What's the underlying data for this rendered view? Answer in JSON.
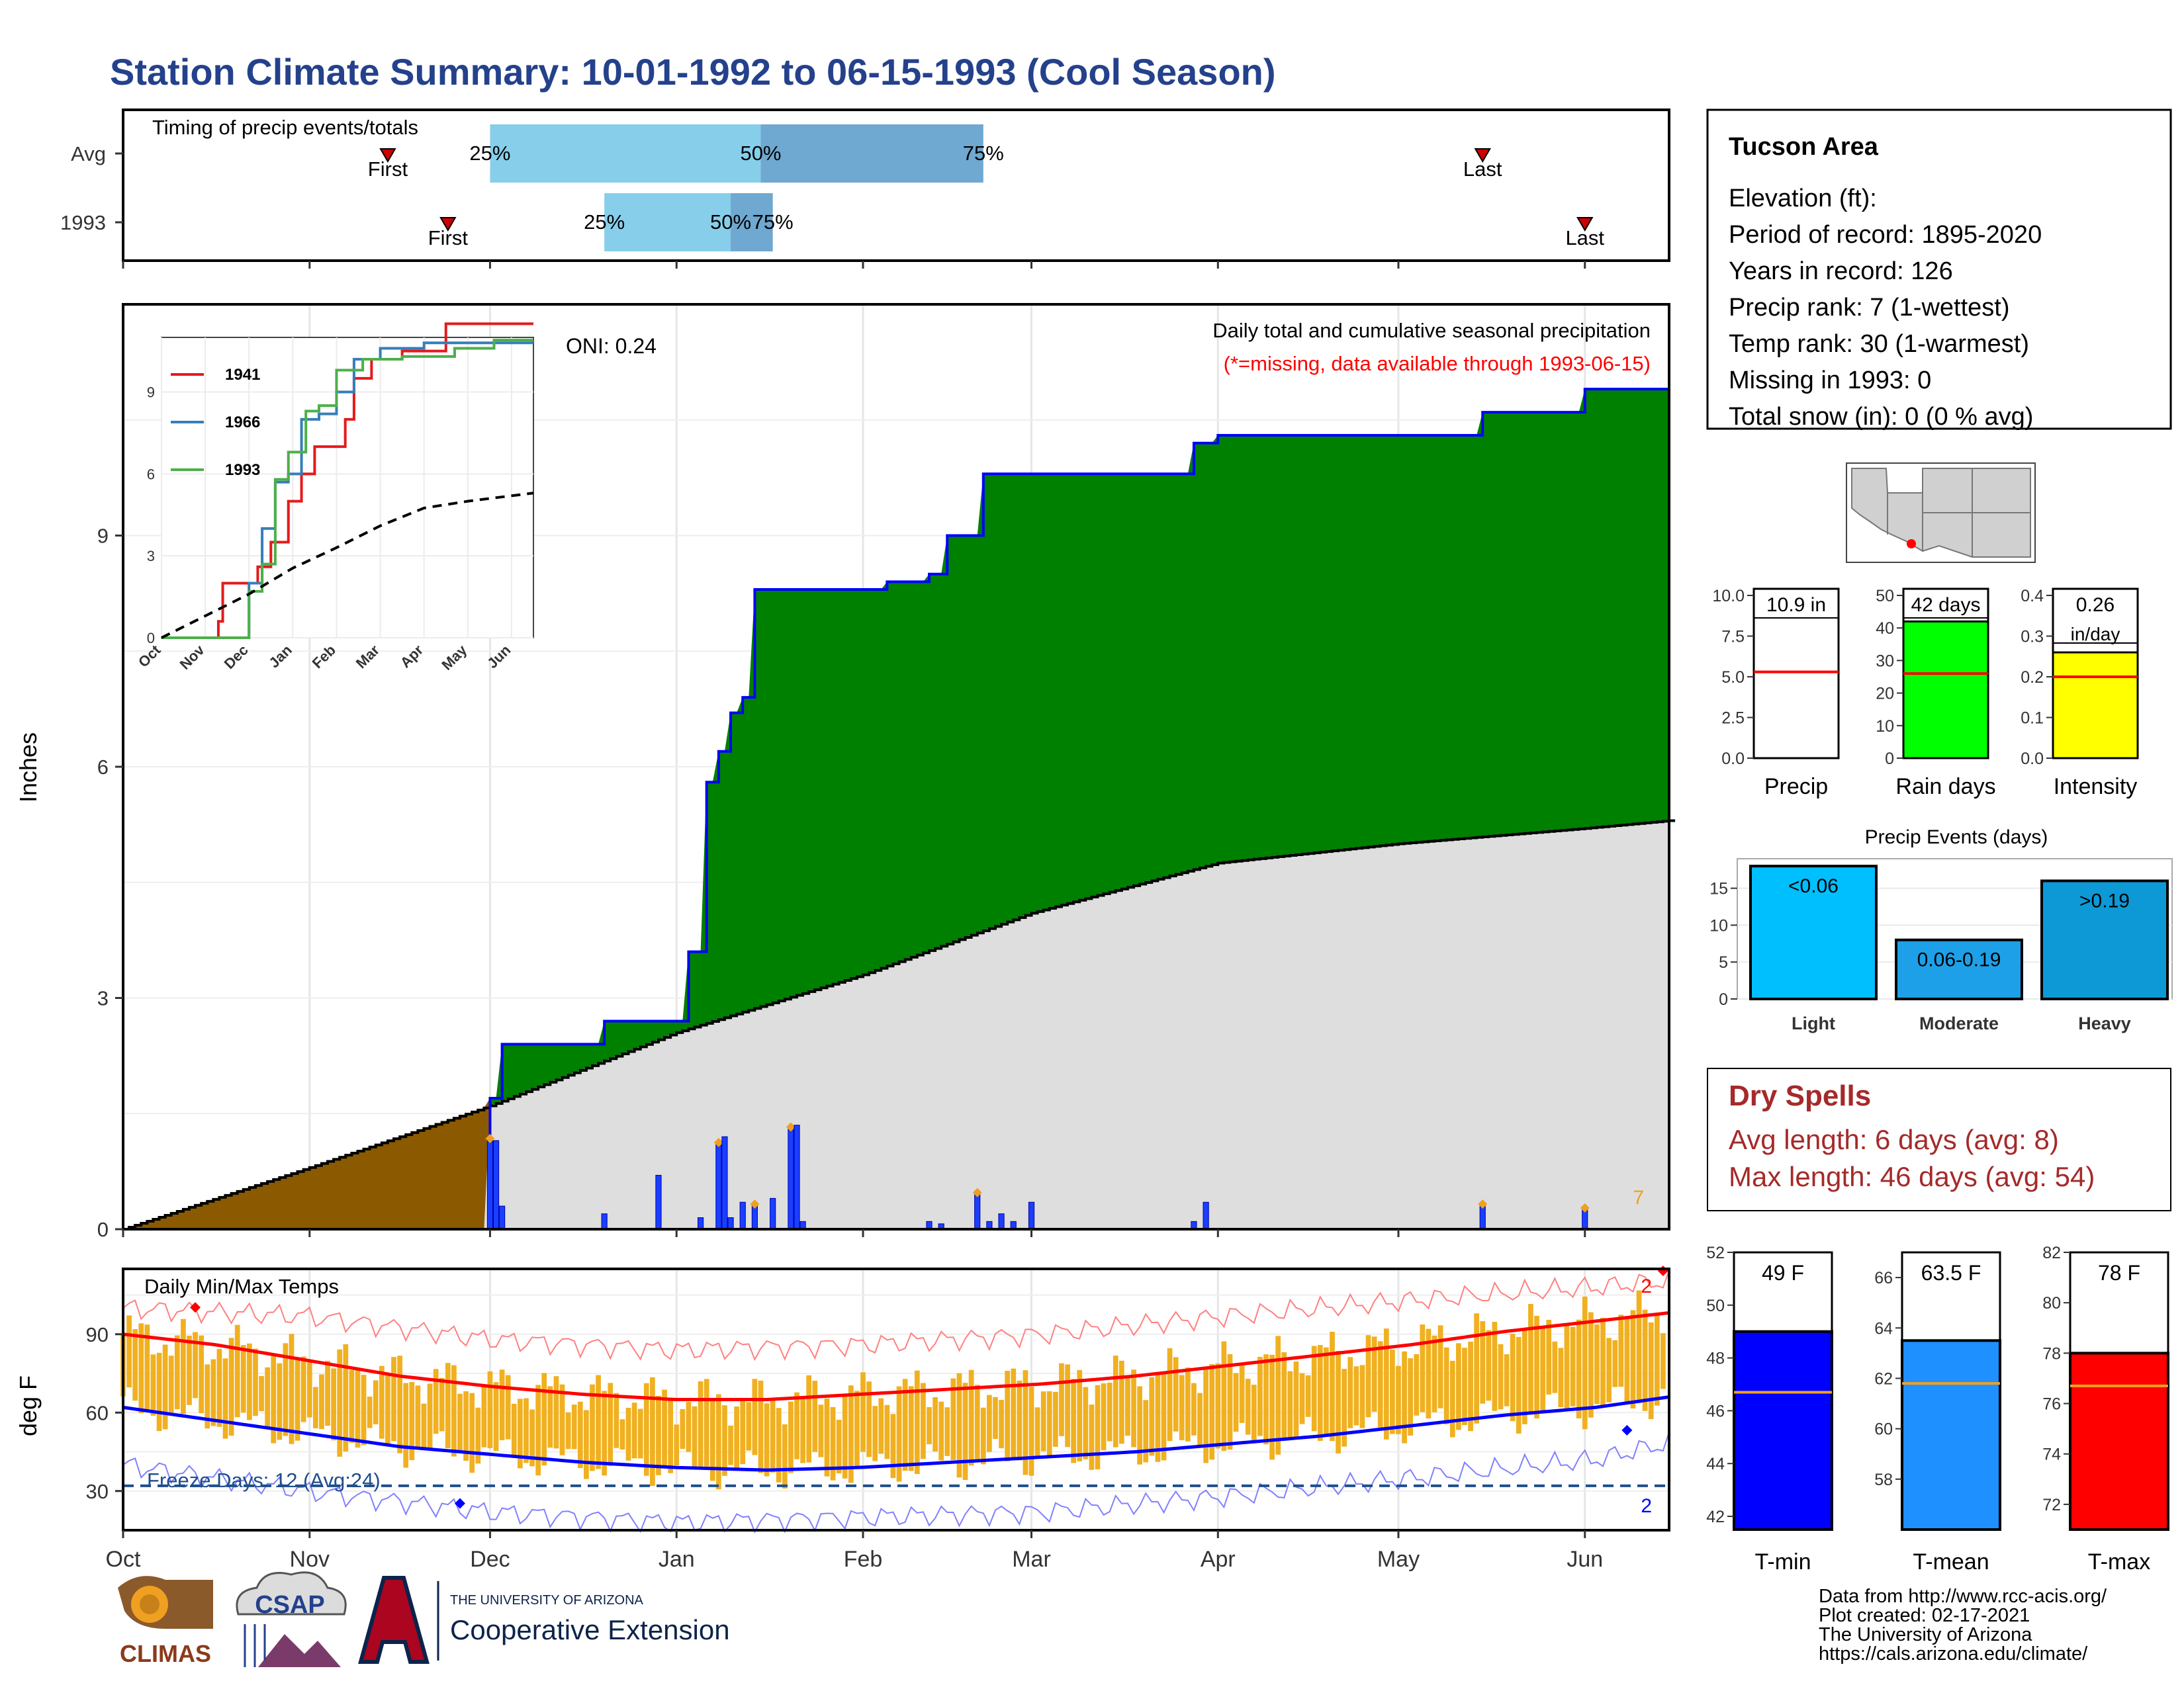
{
  "title": "Station Climate Summary: 10-01-1992 to 06-15-1993 (Cool Season)",
  "colors": {
    "title": "#24418c",
    "dry_brown": "#8b5a00",
    "wet_green": "#008000",
    "cum_line": "#0000ff",
    "avg_fill": "#dedede",
    "red": "#ff0000",
    "orange_bar": "#f0b020",
    "dry_spell_text": "#a52a2a",
    "freeze_line": "#1f4e8c",
    "q1_bar": "#87ceeb",
    "q2_bar": "#6fa8d0"
  },
  "timing": {
    "label": "Timing of precip events/totals",
    "rows": [
      {
        "name": "Avg",
        "first": "Nov 14",
        "last": "May 15",
        "q25": "Dec 1",
        "q50": "Jan 15",
        "q75": "Feb 21",
        "first_label": "First",
        "last_label": "Last",
        "q25_label": "25%",
        "q50_label": "50%",
        "q75_label": "75%"
      },
      {
        "name": "1993",
        "first": "Nov 24",
        "last": "Jun 1",
        "q25": "Dec 20",
        "q50": "Jan 10",
        "q75": "Jan 17",
        "first_label": "First",
        "last_label": "Last",
        "q25_label": "25%",
        "q50_label": "50%",
        "q75_label": "75%"
      }
    ]
  },
  "precip_panel": {
    "ylabel": "Inches",
    "oni": "ONI: 0.24",
    "subtitle": "Daily total and cumulative seasonal precipitation",
    "missing_note": "(*=missing, data available through 1993-06-15)",
    "count_label": "7"
  },
  "station": {
    "name": "Tucson Area",
    "lines": [
      "Elevation (ft):",
      "Period of record: 1895-2020",
      "Years in record: 126",
      "Precip rank: 7 (1-wettest)",
      "Temp rank: 30 (1-warmest)",
      "Missing in 1993: 0",
      "Total snow (in): 0 (0 % avg)"
    ]
  },
  "mini_bars": [
    {
      "label": "Precip",
      "value_label": "10.9 in",
      "value": 10.9,
      "avg": 5.3,
      "ymax": 10,
      "ticks": [
        "0.0",
        "2.5",
        "5.0",
        "7.5",
        "10.0"
      ],
      "tick_vals": [
        0,
        2.5,
        5,
        7.5,
        10
      ],
      "color": "#ffffff"
    },
    {
      "label": "Rain days",
      "value_label": "42 days",
      "value": 42,
      "avg": 26,
      "ymax": 50,
      "ticks": [
        "0",
        "10",
        "20",
        "30",
        "40",
        "50"
      ],
      "tick_vals": [
        0,
        10,
        20,
        30,
        40,
        50
      ],
      "color": "#00ff00"
    },
    {
      "label": "Intensity",
      "value_label": "0.26",
      "value_label2": "in/day",
      "value": 0.26,
      "avg": 0.2,
      "ymax": 0.4,
      "ticks": [
        "0.0",
        "0.1",
        "0.2",
        "0.3",
        "0.4"
      ],
      "tick_vals": [
        0,
        0.1,
        0.2,
        0.3,
        0.4
      ],
      "color": "#ffff00"
    }
  ],
  "events": {
    "title": "Precip Events (days)",
    "ticks": [
      "0",
      "5",
      "10",
      "15"
    ],
    "tick_vals": [
      0,
      5,
      10,
      15
    ],
    "bars": [
      {
        "cat": "Light",
        "value": 18,
        "label": "<0.06",
        "color": "#00bfff"
      },
      {
        "cat": "Moderate",
        "value": 8,
        "label": "0.06-0.19",
        "color": "#1ea0e8"
      },
      {
        "cat": "Heavy",
        "value": 16,
        "label": ">0.19",
        "color": "#0c99d6"
      }
    ]
  },
  "dry_spells": {
    "title": "Dry Spells",
    "avg_line": "Avg length: 6 days (avg: 8)",
    "max_line": "Max length: 46 days (avg: 54)"
  },
  "temp_panel": {
    "title": "Daily Min/Max Temps",
    "ylabel": "deg F",
    "freeze_label": "Freeze Days: 12 (Avg:24)",
    "hot_count": "2",
    "cold_count": "2"
  },
  "temp_bars": [
    {
      "label": "T-min",
      "value_label": "49 F",
      "value": 49,
      "avg": 46.7,
      "ymin": 41.5,
      "ymax": 52,
      "ticks": [
        "42",
        "44",
        "46",
        "48",
        "50",
        "52"
      ],
      "tick_vals": [
        42,
        44,
        46,
        48,
        50,
        52
      ],
      "color": "#0000ff"
    },
    {
      "label": "T-mean",
      "value_label": "63.5 F",
      "value": 63.5,
      "avg": 61.8,
      "ymin": 56,
      "ymax": 67,
      "ticks": [
        "58",
        "60",
        "62",
        "64",
        "66"
      ],
      "tick_vals": [
        58,
        60,
        62,
        64,
        66
      ],
      "color": "#1e90ff"
    },
    {
      "label": "T-max",
      "value_label": "78 F",
      "value": 78,
      "avg": 76.7,
      "ymin": 71,
      "ymax": 82,
      "ticks": [
        "72",
        "74",
        "76",
        "78",
        "80",
        "82"
      ],
      "tick_vals": [
        72,
        74,
        76,
        78,
        80,
        82
      ],
      "color": "#ff0000"
    }
  ],
  "footer": [
    "Data from http://www.rcc-acis.org/",
    "Plot created: 02-17-2021",
    "The University of Arizona",
    "https://cals.arizona.edu/climate/"
  ],
  "logos": {
    "climas": "CLIMAS",
    "csap": "CSAP",
    "ua_small": "THE UNIVERSITY OF ARIZONA",
    "ua_big": "Cooperative Extension"
  },
  "chart_data": [
    {
      "type": "area",
      "title": "Daily total and cumulative seasonal precipitation",
      "ylabel": "Inches",
      "ylim": [
        0,
        12
      ],
      "yticks": [
        0,
        3,
        6,
        9
      ],
      "x_tick_labels": [
        "Oct",
        "Nov",
        "Dec",
        "Jan",
        "Feb",
        "Mar",
        "Apr",
        "May",
        "Jun"
      ],
      "series": [
        {
          "name": "cumulative 1993",
          "x": [
            "1992-10-01",
            "1992-11-24",
            "1992-12-01",
            "1992-12-03",
            "1992-12-20",
            "1993-01-03",
            "1993-01-06",
            "1993-01-08",
            "1993-01-10",
            "1993-01-12",
            "1993-01-14",
            "1993-01-17",
            "1993-01-20",
            "1993-02-05",
            "1993-02-12",
            "1993-02-15",
            "1993-02-21",
            "1993-03-01",
            "1993-03-28",
            "1993-04-01",
            "1993-05-15",
            "1993-06-01",
            "1993-06-15"
          ],
          "values": [
            0,
            0,
            1.7,
            2.4,
            2.7,
            3.6,
            5.8,
            6.2,
            6.7,
            6.9,
            8.3,
            8.3,
            8.3,
            8.4,
            8.5,
            9.0,
            9.8,
            9.8,
            10.2,
            10.3,
            10.6,
            10.9,
            10.9
          ]
        },
        {
          "name": "average cumulative",
          "x": [
            "1992-10-01",
            "1992-11-01",
            "1992-12-01",
            "1993-01-01",
            "1993-02-01",
            "1993-03-01",
            "1993-04-01",
            "1993-05-01",
            "1993-06-01",
            "1993-06-15"
          ],
          "values": [
            0,
            0.8,
            1.6,
            2.55,
            3.3,
            4.1,
            4.75,
            5.0,
            5.2,
            5.3
          ]
        }
      ],
      "daily_precip": [
        {
          "date": "1992-12-01",
          "value": 1.15
        },
        {
          "date": "1992-12-02",
          "value": 1.15
        },
        {
          "date": "1992-12-03",
          "value": 0.3
        },
        {
          "date": "1992-12-20",
          "value": 0.2
        },
        {
          "date": "1992-12-29",
          "value": 0.7
        },
        {
          "date": "1993-01-05",
          "value": 0.15
        },
        {
          "date": "1993-01-08",
          "value": 1.1
        },
        {
          "date": "1993-01-09",
          "value": 1.2
        },
        {
          "date": "1993-01-10",
          "value": 0.15
        },
        {
          "date": "1993-01-12",
          "value": 0.35
        },
        {
          "date": "1993-01-14",
          "value": 0.3
        },
        {
          "date": "1993-01-17",
          "value": 0.4
        },
        {
          "date": "1993-01-20",
          "value": 1.3
        },
        {
          "date": "1993-01-21",
          "value": 1.35
        },
        {
          "date": "1993-01-22",
          "value": 0.1
        },
        {
          "date": "1993-02-12",
          "value": 0.1
        },
        {
          "date": "1993-02-14",
          "value": 0.07
        },
        {
          "date": "1993-02-20",
          "value": 0.45
        },
        {
          "date": "1993-02-22",
          "value": 0.1
        },
        {
          "date": "1993-02-24",
          "value": 0.2
        },
        {
          "date": "1993-02-26",
          "value": 0.1
        },
        {
          "date": "1993-03-01",
          "value": 0.35
        },
        {
          "date": "1993-03-28",
          "value": 0.1
        },
        {
          "date": "1993-03-30",
          "value": 0.35
        },
        {
          "date": "1993-05-15",
          "value": 0.3
        },
        {
          "date": "1993-06-01",
          "value": 0.25
        }
      ]
    },
    {
      "type": "line",
      "title": "",
      "ylim": [
        0,
        11
      ],
      "yticks": [
        0,
        3,
        6,
        9
      ],
      "x_tick_labels": [
        "Oct",
        "Nov",
        "Dec",
        "Jan",
        "Feb",
        "Mar",
        "Apr",
        "May",
        "Jun"
      ],
      "series": [
        {
          "name": "1941",
          "color": "#e41a1c",
          "x": [
            0,
            1.3,
            1.4,
            1.9,
            2.2,
            2.5,
            2.9,
            3.2,
            3.5,
            4.2,
            4.4,
            4.8,
            5.5,
            6.5,
            8.5
          ],
          "values": [
            0,
            0.6,
            2.0,
            2.0,
            2.6,
            3.5,
            5.0,
            6.0,
            7.0,
            8.0,
            9.5,
            10.2,
            10.5,
            11.5,
            11.5
          ]
        },
        {
          "name": "1966",
          "color": "#377eb8",
          "x": [
            0,
            1.8,
            2.0,
            2.3,
            2.6,
            2.9,
            3.2,
            3.6,
            4.0,
            4.4,
            5.0,
            6.0,
            8.5
          ],
          "values": [
            0,
            0,
            2.0,
            4.0,
            5.7,
            6.0,
            8.0,
            8.2,
            9.0,
            10.2,
            10.6,
            10.8,
            10.8
          ]
        },
        {
          "name": "1993",
          "color": "#4daf4a",
          "x": [
            0,
            1.8,
            2.0,
            2.3,
            2.6,
            2.9,
            3.3,
            3.6,
            4.0,
            4.6,
            5.5,
            6.7,
            7.6,
            8.5
          ],
          "values": [
            0,
            0,
            1.7,
            2.7,
            5.8,
            6.8,
            8.3,
            8.5,
            9.8,
            10.2,
            10.3,
            10.6,
            10.9,
            10.9
          ]
        },
        {
          "name": "average",
          "color": "#000000",
          "x": [
            0,
            1,
            2,
            3,
            4,
            5,
            6,
            7,
            8,
            8.5
          ],
          "values": [
            0,
            0.8,
            1.6,
            2.55,
            3.3,
            4.1,
            4.75,
            5.0,
            5.2,
            5.3
          ]
        }
      ]
    },
    {
      "type": "line",
      "title": "Daily Min/Max Temps",
      "ylabel": "deg F",
      "ylim": [
        15,
        115
      ],
      "yticks": [
        30,
        60,
        90
      ],
      "x_tick_labels": [
        "Oct",
        "Nov",
        "Dec",
        "Jan",
        "Feb",
        "Mar",
        "Apr",
        "May",
        "Jun"
      ],
      "series": [
        {
          "name": "avg max",
          "x": [
            0,
            0.5,
            1,
            1.5,
            2,
            2.5,
            3,
            3.5,
            4,
            4.5,
            5,
            5.5,
            6,
            6.5,
            7,
            7.5,
            8,
            8.5
          ],
          "values": [
            90,
            86,
            80,
            74,
            70,
            67,
            65,
            65,
            67,
            69,
            71,
            74,
            78,
            82,
            86,
            91,
            95,
            99
          ]
        },
        {
          "name": "avg min",
          "x": [
            0,
            0.5,
            1,
            1.5,
            2,
            2.5,
            3,
            3.5,
            4,
            4.5,
            5,
            5.5,
            6,
            6.5,
            7,
            7.5,
            8,
            8.5
          ],
          "values": [
            62,
            57,
            52,
            47,
            44,
            41,
            39,
            38,
            39,
            41,
            43,
            45,
            48,
            51,
            55,
            59,
            62,
            67
          ]
        },
        {
          "name": "record high",
          "x": [
            0,
            1,
            2,
            3,
            4,
            5,
            6,
            7,
            8,
            8.5
          ],
          "values": [
            100,
            97,
            88,
            84,
            86,
            90,
            97,
            103,
            108,
            111
          ]
        },
        {
          "name": "record low",
          "x": [
            0,
            1,
            2,
            3,
            4,
            5,
            6,
            7,
            8,
            8.5
          ],
          "values": [
            40,
            30,
            22,
            18,
            20,
            22,
            28,
            35,
            42,
            50
          ]
        }
      ],
      "freeze_line": 32
    }
  ]
}
